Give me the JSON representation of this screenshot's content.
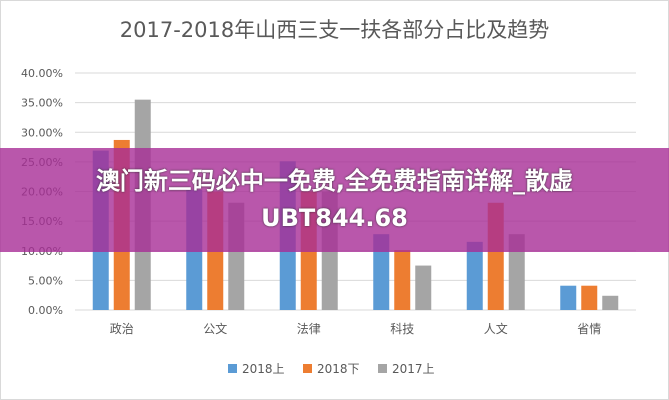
{
  "chart_data": {
    "type": "bar",
    "title": "2017-2018年山西三支一扶各部分占比及趋势",
    "categories": [
      "政治",
      "公文",
      "法律",
      "科技",
      "人文",
      "省情"
    ],
    "series": [
      {
        "name": "2018上",
        "color": "#5b9bd5",
        "values": [
          26.9,
          20.3,
          25.1,
          12.8,
          11.5,
          4.1
        ]
      },
      {
        "name": "2018下",
        "color": "#ed7d31",
        "values": [
          28.7,
          20.0,
          20.0,
          10.1,
          18.1,
          4.1
        ]
      },
      {
        "name": "2017上",
        "color": "#a5a5a5",
        "values": [
          35.5,
          18.1,
          20.0,
          7.5,
          12.8,
          2.4
        ]
      }
    ],
    "ylim": [
      0,
      40
    ],
    "yticks": [
      "0.00%",
      "5.00%",
      "10.00%",
      "15.00%",
      "20.00%",
      "25.00%",
      "30.00%",
      "35.00%",
      "40.00%"
    ],
    "grid": true,
    "legend": "bottom"
  },
  "banner": {
    "text": "澳门新三码必中一免费,全免费指南详解_散虚UBT844.68"
  }
}
